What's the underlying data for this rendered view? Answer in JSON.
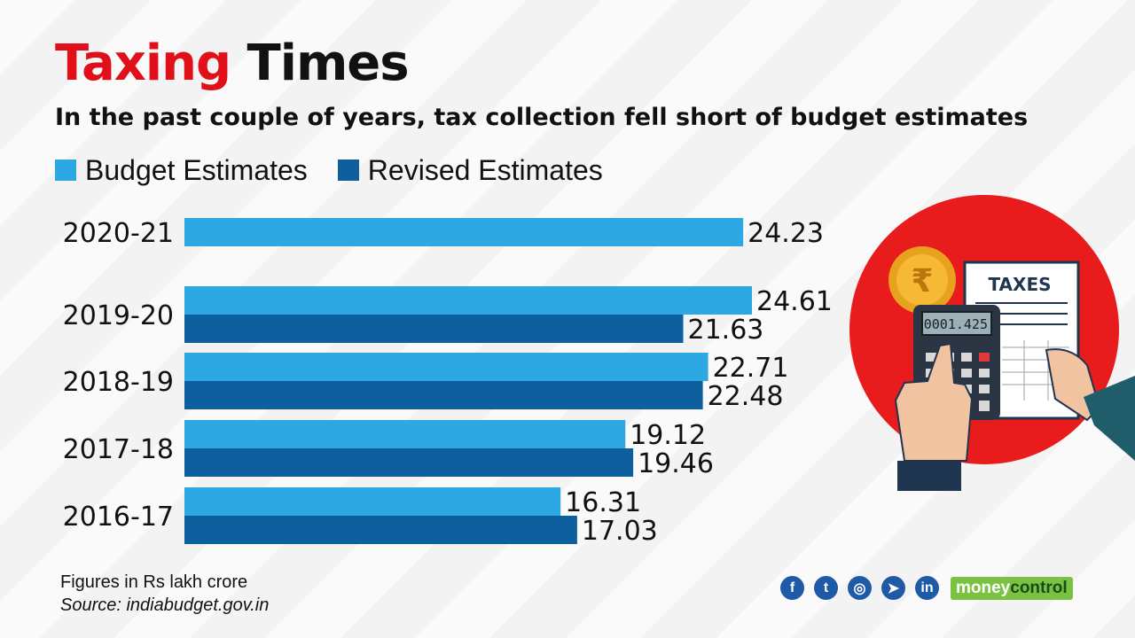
{
  "header": {
    "title_red": "Taxing",
    "title_black": "Times",
    "subtitle": "In the past couple of years, tax collection fell short of budget estimates"
  },
  "legend": [
    {
      "label": "Budget Estimates",
      "color": "#2ea8e2"
    },
    {
      "label": "Revised Estimates",
      "color": "#0d5f9e"
    }
  ],
  "chart_data": {
    "type": "bar",
    "orientation": "horizontal",
    "categories": [
      "2020-21",
      "2019-20",
      "2018-19",
      "2017-18",
      "2016-17"
    ],
    "series": [
      {
        "name": "Budget Estimates",
        "color": "#2ea8e2",
        "values": [
          24.23,
          24.61,
          22.71,
          19.12,
          16.31
        ]
      },
      {
        "name": "Revised Estimates",
        "color": "#0d5f9e",
        "values": [
          null,
          21.63,
          22.48,
          19.46,
          17.03
        ]
      }
    ],
    "xlim": [
      0,
      24.61
    ],
    "grid": false,
    "legend_position": "top-left"
  },
  "footer": {
    "note": "Figures in Rs lakh crore",
    "source": "Source: indiabudget.gov.in"
  },
  "illustration": {
    "calculator_display": "0001.425",
    "document_title": "TAXES",
    "coin_symbol": "₹",
    "accent_color": "#e81c1c"
  },
  "social": [
    {
      "icon": "facebook-icon",
      "glyph": "f"
    },
    {
      "icon": "twitter-icon",
      "glyph": "t"
    },
    {
      "icon": "instagram-icon",
      "glyph": "◎"
    },
    {
      "icon": "telegram-icon",
      "glyph": "➤"
    },
    {
      "icon": "linkedin-icon",
      "glyph": "in"
    }
  ],
  "brand": {
    "part1": "money",
    "part2": "control"
  }
}
